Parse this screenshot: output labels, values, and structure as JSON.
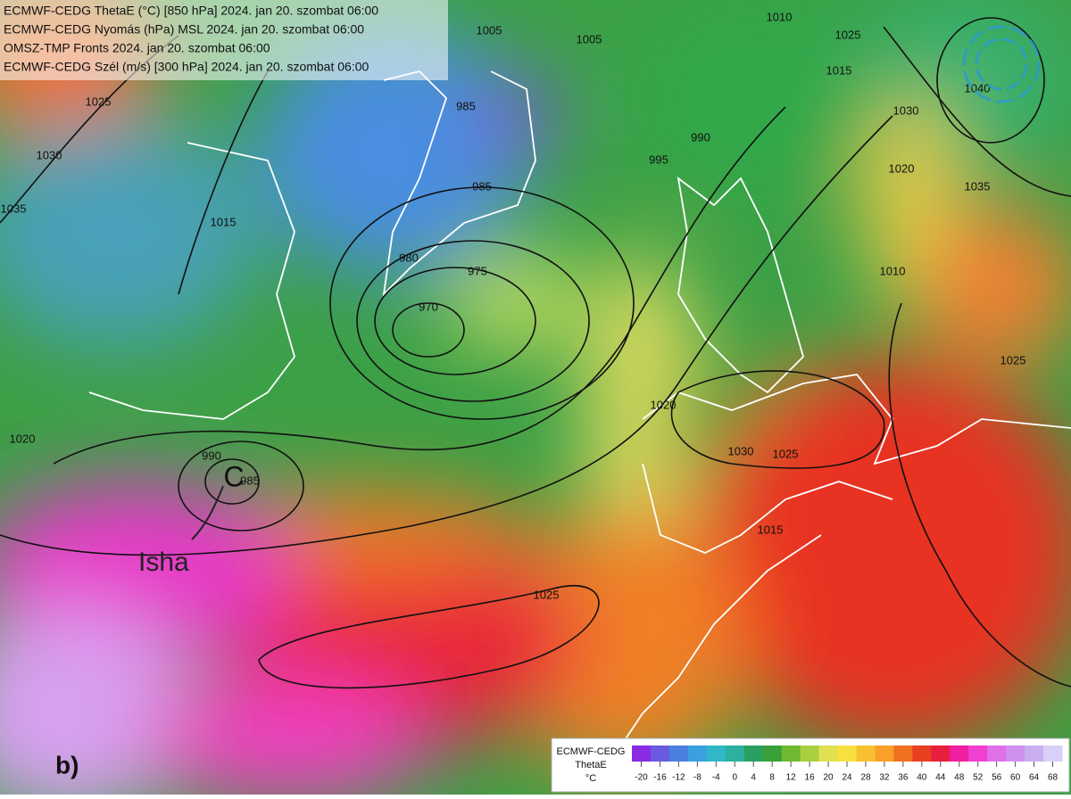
{
  "header": {
    "lines": [
      "ECMWF-CEDG ThetaE (°C) [850 hPa] 2024. jan 20. szombat 06:00",
      "ECMWF-CEDG Nyomás (hPa) MSL 2024. jan 20. szombat 06:00",
      "OMSZ-TMP Fronts 2024. jan 20. szombat 06:00",
      "ECMWF-CEDG Szél (m/s) [300 hPa] 2024. jan 20. szombat 06:00"
    ]
  },
  "isobars": [
    1005,
    1005,
    1010,
    1025,
    1015,
    1030,
    1020,
    1035,
    1040,
    1025,
    1030,
    1035,
    1015,
    985,
    985,
    990,
    995,
    980,
    975,
    970,
    1010,
    1020,
    1030,
    1025,
    1015,
    1025,
    1020,
    990,
    985,
    1025
  ],
  "cyclone": {
    "symbol": "C",
    "name": "Isha"
  },
  "panel_label": "b)",
  "legend": {
    "title": [
      "ECMWF-CEDG",
      "ThetaE",
      "°C"
    ],
    "ticks": [
      -20,
      -16,
      -12,
      -8,
      -4,
      0,
      4,
      8,
      12,
      16,
      20,
      24,
      28,
      32,
      36,
      40,
      44,
      48,
      52,
      56,
      60,
      64,
      68
    ],
    "colors": [
      "#8a2be2",
      "#6a5ae0",
      "#4a7fe0",
      "#3aa0e0",
      "#30b8c8",
      "#2cb0a0",
      "#2aa060",
      "#3aa03a",
      "#70b830",
      "#a8d040",
      "#e0e050",
      "#f8e040",
      "#f8c030",
      "#f8a028",
      "#f07020",
      "#e84020",
      "#e82040",
      "#f020a0",
      "#f040d0",
      "#e070e8",
      "#d090f0",
      "#c8b0f0",
      "#d8d0f8"
    ]
  }
}
